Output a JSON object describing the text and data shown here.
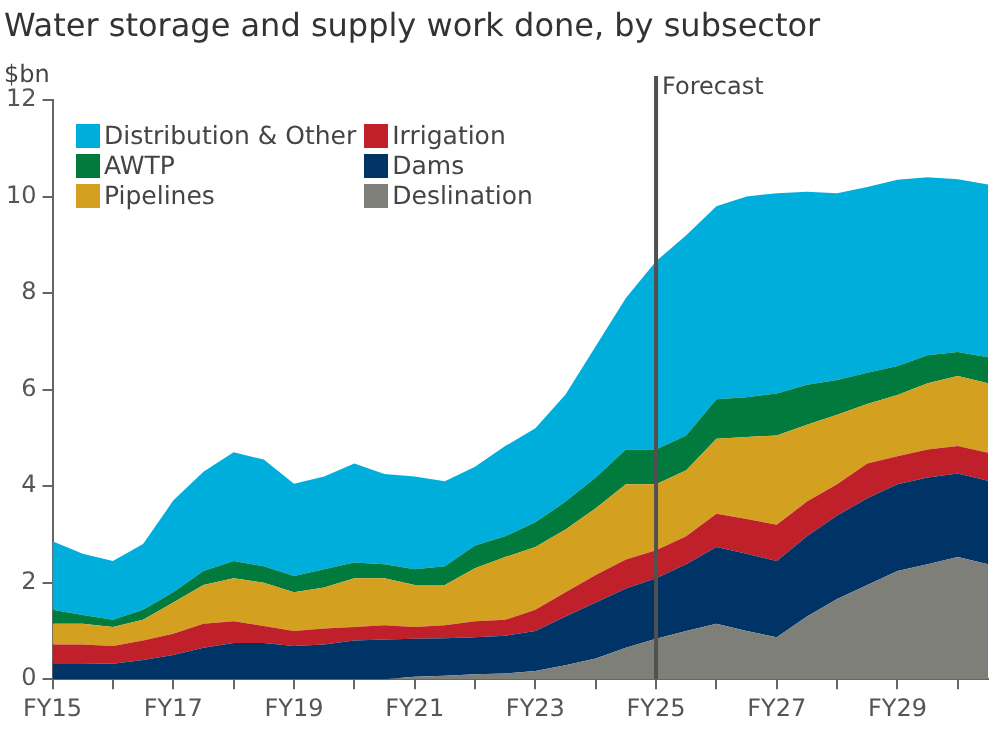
{
  "chart_data": {
    "type": "area",
    "title": "Water storage and supply work done, by subsector",
    "ylabel": "$bn",
    "stacked": true,
    "categories": [
      "FY15",
      null,
      null,
      null,
      "FY17",
      null,
      null,
      null,
      "FY19",
      null,
      null,
      null,
      "FY21",
      null,
      null,
      null,
      "FY23",
      null,
      null,
      null,
      "FY25",
      null,
      null,
      null,
      "FY27",
      null,
      null,
      null,
      "FY29",
      null,
      null,
      null
    ],
    "series": [
      {
        "name": "Deslination",
        "color": "#7f7f7a",
        "values": [
          0,
          0,
          0,
          0,
          0,
          0,
          0,
          0,
          0,
          0,
          0,
          0,
          0.05,
          0.07,
          0.1,
          0.12,
          0.17,
          0.29,
          0.43,
          0.65,
          0.84,
          1.0,
          1.15,
          1.0,
          0.87,
          1.3,
          1.66,
          1.95,
          2.24,
          2.38,
          2.53,
          2.38
        ]
      },
      {
        "name": "Dams",
        "color": "#003366",
        "values": [
          0.33,
          0.33,
          0.32,
          0.4,
          0.5,
          0.65,
          0.75,
          0.75,
          0.69,
          0.72,
          0.8,
          0.82,
          0.79,
          0.78,
          0.77,
          0.78,
          0.83,
          1.01,
          1.16,
          1.23,
          1.25,
          1.38,
          1.59,
          1.6,
          1.58,
          1.66,
          1.73,
          1.8,
          1.8,
          1.8,
          1.73,
          1.73
        ]
      },
      {
        "name": "Irrigation",
        "color": "#c0202a",
        "values": [
          0.39,
          0.39,
          0.37,
          0.4,
          0.44,
          0.5,
          0.45,
          0.35,
          0.31,
          0.33,
          0.28,
          0.3,
          0.24,
          0.27,
          0.33,
          0.33,
          0.44,
          0.5,
          0.57,
          0.6,
          0.58,
          0.58,
          0.69,
          0.72,
          0.75,
          0.72,
          0.65,
          0.72,
          0.58,
          0.58,
          0.57,
          0.58
        ]
      },
      {
        "name": "Pipelines",
        "color": "#d4a020",
        "values": [
          0.43,
          0.43,
          0.39,
          0.43,
          0.65,
          0.8,
          0.89,
          0.9,
          0.8,
          0.85,
          1.01,
          0.97,
          0.87,
          0.83,
          1.1,
          1.3,
          1.3,
          1.3,
          1.38,
          1.56,
          1.37,
          1.37,
          1.55,
          1.7,
          1.85,
          1.59,
          1.44,
          1.23,
          1.27,
          1.37,
          1.45,
          1.44
        ]
      },
      {
        "name": "AWTP",
        "color": "#007a3d",
        "values": [
          0.29,
          0.18,
          0.15,
          0.21,
          0.21,
          0.29,
          0.36,
          0.34,
          0.34,
          0.38,
          0.33,
          0.29,
          0.33,
          0.39,
          0.47,
          0.43,
          0.51,
          0.58,
          0.64,
          0.72,
          0.72,
          0.72,
          0.82,
          0.82,
          0.87,
          0.83,
          0.72,
          0.65,
          0.6,
          0.58,
          0.5,
          0.54
        ]
      },
      {
        "name": "Distribution & Other",
        "color": "#00aedb",
        "values": [
          1.42,
          1.27,
          1.22,
          1.36,
          1.9,
          2.06,
          2.25,
          2.21,
          1.91,
          1.92,
          2.05,
          1.87,
          1.92,
          1.76,
          1.63,
          1.87,
          1.95,
          2.22,
          2.72,
          3.14,
          3.9,
          4.15,
          4.0,
          4.16,
          4.15,
          4.0,
          3.87,
          3.85,
          3.86,
          3.69,
          3.58,
          3.58
        ]
      }
    ],
    "ylim": [
      0,
      12
    ],
    "yticks": [
      0,
      2,
      4,
      6,
      8,
      10,
      12
    ],
    "ref_lines": [
      {
        "axis": "x",
        "value": "FY25",
        "label": "Forecast",
        "color": "#505050"
      }
    ],
    "grid": false,
    "legend": "top left"
  }
}
